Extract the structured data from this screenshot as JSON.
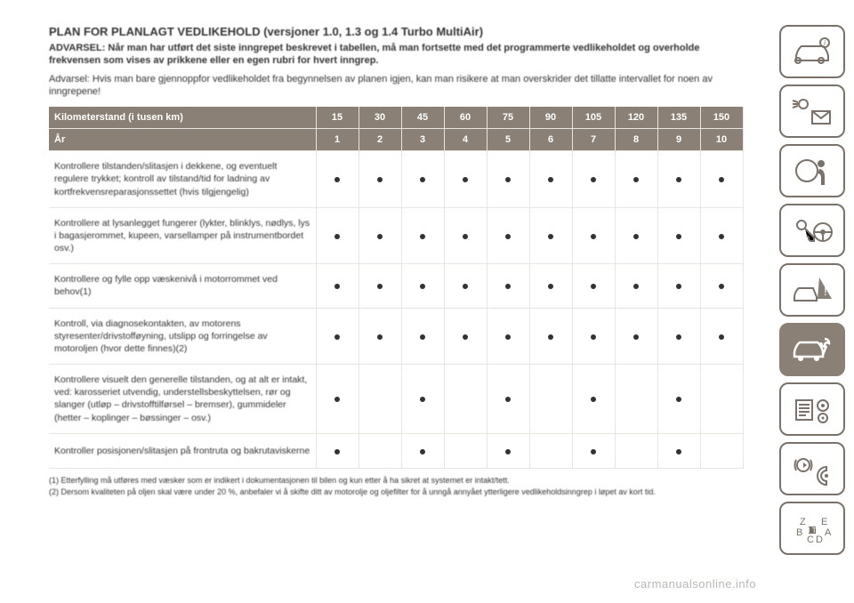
{
  "colors": {
    "header_bg": "#8a8076",
    "header_text": "#ffffff",
    "border": "#e8e4df",
    "body_text": "#333333",
    "sidebar_stroke": "#7a726a",
    "watermark": "#bbb7b3"
  },
  "title": "PLAN FOR PLANLAGT VEDLIKEHOLD (versjoner 1.0, 1.3 og 1.4 Turbo MultiAir)",
  "warning": "ADVARSEL: Når man har utført det siste inngrepet beskrevet i tabellen, må man fortsette med det programmerte vedlikeholdet og overholde frekvensen som vises av prikkene eller en egen rubri for hvert inngrep.",
  "note": "Advarsel: Hvis man bare gjennoppfor vedlikeholdet fra begynnelsen av planen igjen, kan man risikere at man overskrider det tillatte intervallet for noen av inngrepene!",
  "table": {
    "header_km_label": "Kilometerstand (i tusen km)",
    "header_year_label": "År",
    "km_values": [
      15,
      30,
      45,
      60,
      75,
      90,
      105,
      120,
      135,
      150
    ],
    "year_values": [
      1,
      2,
      3,
      4,
      5,
      6,
      7,
      8,
      9,
      10
    ],
    "rows": [
      {
        "label": "Kontrollere tilstanden/slitasjen i dekkene, og eventuelt regulere trykket; kontroll av tilstand/tid for ladning av kortfrekvensreparasjonssettet (hvis tilgjengelig)",
        "marks": [
          1,
          1,
          1,
          1,
          1,
          1,
          1,
          1,
          1,
          1
        ]
      },
      {
        "label": "Kontrollere at lysanlegget fungerer (lykter, blinklys, nødlys, lys i bagasjerommet, kupeen, varsellamper på instrumentbordet osv.)",
        "marks": [
          1,
          1,
          1,
          1,
          1,
          1,
          1,
          1,
          1,
          1
        ]
      },
      {
        "label": "Kontrollere og fylle opp væskenivå i motorrommet ved behov(1)",
        "marks": [
          1,
          1,
          1,
          1,
          1,
          1,
          1,
          1,
          1,
          1
        ]
      },
      {
        "label": "Kontroll, via diagnosekontakten, av motorens styresenter/drivstofføyning, utslipp og forringelse av motoroljen (hvor dette finnes)(2)",
        "marks": [
          1,
          1,
          1,
          1,
          1,
          1,
          1,
          1,
          1,
          1
        ]
      },
      {
        "label": "Kontrollere visuelt den generelle tilstanden, og at alt er intakt, ved: karosseriet utvendig, understellsbeskyttelsen, rør og slanger (utløp – drivstofftilførsel – bremser), gummideler (hetter – koplinger – bøssinger – osv.)",
        "marks": [
          1,
          0,
          1,
          0,
          1,
          0,
          1,
          0,
          1,
          0
        ]
      },
      {
        "label": "Kontroller posisjonen/slitasjen på frontruta og bakrutaviskerne",
        "marks": [
          1,
          0,
          1,
          0,
          1,
          0,
          1,
          0,
          1,
          0
        ]
      }
    ]
  },
  "footnotes": [
    "(1) Etterfylling må utføres med væsker som er indikert i dokumentasjonen til bilen og kun etter å ha sikret at systemet er intakt/tett.",
    "(2) Dersom kvaliteten på oljen skal være under 20 %, anbefaler vi å skifte ditt av motorolje og oljefilter for å unngå annyået ytterligere vedlikeholdsinngrep i løpet av kort tid."
  ],
  "watermark": "carmanualsonline.info",
  "sidebar": {
    "items": [
      {
        "name": "car-info-icon",
        "active": false
      },
      {
        "name": "lights-mail-icon",
        "active": false
      },
      {
        "name": "airbag-icon",
        "active": false
      },
      {
        "name": "key-steering-icon",
        "active": false
      },
      {
        "name": "crash-warning-icon",
        "active": false
      },
      {
        "name": "car-service-icon",
        "active": true
      },
      {
        "name": "settings-list-icon",
        "active": false
      },
      {
        "name": "media-nav-icon",
        "active": false
      },
      {
        "name": "index-icon",
        "active": false
      }
    ]
  }
}
